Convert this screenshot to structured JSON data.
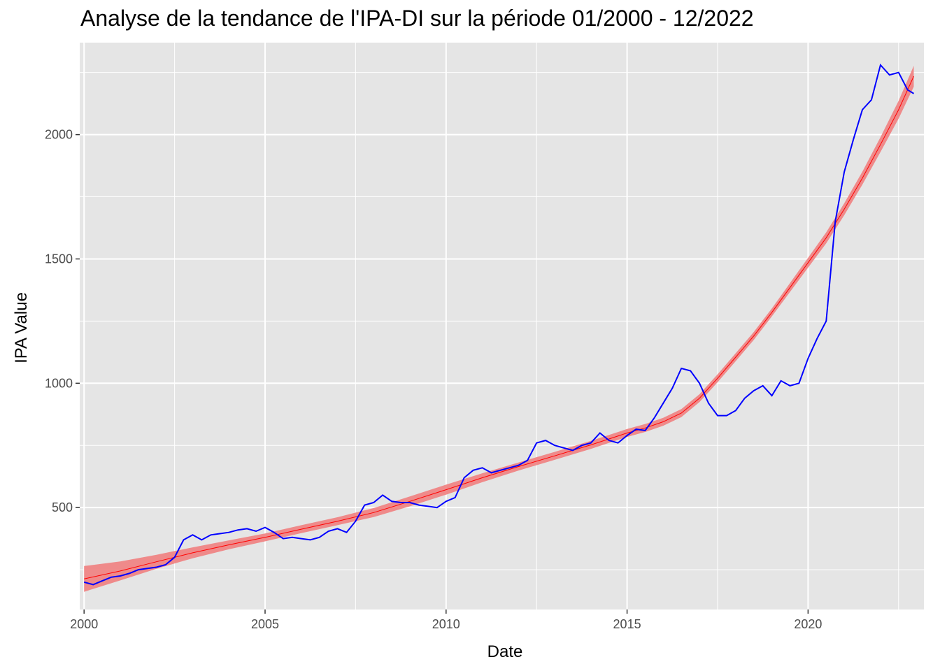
{
  "chart_data": {
    "type": "line",
    "title": "Analyse de la tendance de l'IPA-DI sur la période 01/2000 - 12/2022",
    "xlabel": "Date",
    "ylabel": "IPA Value",
    "xlim": [
      1999.88,
      2023.2
    ],
    "ylim": [
      90,
      2370
    ],
    "x_ticks": [
      2000,
      2005,
      2010,
      2015,
      2020
    ],
    "x_tick_labels": [
      "2000",
      "2005",
      "2010",
      "2015",
      "2020"
    ],
    "y_ticks": [
      500,
      1000,
      1500,
      2000
    ],
    "y_tick_labels": [
      "500",
      "1000",
      "1500",
      "2000"
    ],
    "grid": true,
    "legend": "none",
    "colors": {
      "panel": "#e5e5e5",
      "grid": "#ffffff",
      "series": "#0000ff",
      "trend": "#ff0000",
      "band": "#f08080"
    },
    "series": [
      {
        "x": [
          2000.0,
          2000.25,
          2000.5,
          2000.75,
          2001.0,
          2001.25,
          2001.5,
          2001.75,
          2002.0,
          2002.25,
          2002.5,
          2002.75,
          2003.0,
          2003.25,
          2003.5,
          2003.75,
          2004.0,
          2004.25,
          2004.5,
          2004.75,
          2005.0,
          2005.25,
          2005.5,
          2005.75,
          2006.0,
          2006.25,
          2006.5,
          2006.75,
          2007.0,
          2007.25,
          2007.5,
          2007.75,
          2008.0,
          2008.25,
          2008.5,
          2008.75,
          2009.0,
          2009.25,
          2009.5,
          2009.75,
          2010.0,
          2010.25,
          2010.5,
          2010.75,
          2011.0,
          2011.25,
          2011.5,
          2011.75,
          2012.0,
          2012.25,
          2012.5,
          2012.75,
          2013.0,
          2013.25,
          2013.5,
          2013.75,
          2014.0,
          2014.25,
          2014.5,
          2014.75,
          2015.0,
          2015.25,
          2015.5,
          2015.75,
          2016.0,
          2016.25,
          2016.5,
          2016.75,
          2017.0,
          2017.25,
          2017.5,
          2017.75,
          2018.0,
          2018.25,
          2018.5,
          2018.75,
          2019.0,
          2019.25,
          2019.5,
          2019.75,
          2020.0,
          2020.25,
          2020.5,
          2020.75,
          2021.0,
          2021.25,
          2021.5,
          2021.75,
          2022.0,
          2022.25,
          2022.5,
          2022.75,
          2022.92
        ],
        "values": [
          200,
          190,
          205,
          220,
          225,
          235,
          250,
          255,
          260,
          270,
          300,
          370,
          390,
          370,
          390,
          395,
          400,
          410,
          415,
          405,
          420,
          400,
          375,
          380,
          375,
          370,
          380,
          405,
          415,
          400,
          445,
          510,
          520,
          550,
          525,
          520,
          520,
          510,
          505,
          500,
          525,
          540,
          620,
          650,
          660,
          640,
          650,
          660,
          670,
          690,
          760,
          770,
          750,
          740,
          730,
          750,
          760,
          800,
          770,
          760,
          790,
          815,
          810,
          860,
          920,
          980,
          1060,
          1050,
          1000,
          920,
          870,
          870,
          890,
          940,
          970,
          990,
          950,
          1010,
          990,
          1000,
          1100,
          1180,
          1250,
          1650,
          1850,
          1980,
          2100,
          2140,
          2280,
          2240,
          2250,
          2180,
          2165
        ]
      },
      {
        "name": "",
        "x": [
          2000.0,
          2001.0,
          2002.0,
          2003.0,
          2004.0,
          2005.0,
          2006.0,
          2007.0,
          2008.0,
          2009.0,
          2010.0,
          2011.0,
          2012.0,
          2013.0,
          2014.0,
          2015.0,
          2015.5,
          2016.0,
          2016.5,
          2017.0,
          2017.5,
          2018.0,
          2018.5,
          2019.0,
          2019.5,
          2020.0,
          2020.5,
          2021.0,
          2021.5,
          2022.0,
          2022.5,
          2022.92
        ],
        "values": [
          213,
          245,
          282,
          318,
          350,
          380,
          413,
          445,
          480,
          525,
          572,
          620,
          665,
          708,
          752,
          800,
          820,
          845,
          880,
          940,
          1020,
          1105,
          1190,
          1285,
          1385,
          1485,
          1585,
          1700,
          1825,
          1960,
          2100,
          2235
        ],
        "band_half_width": [
          52,
          38,
          28,
          22,
          18,
          16,
          16,
          16,
          18,
          20,
          20,
          18,
          16,
          16,
          16,
          16,
          16,
          16,
          16,
          16,
          16,
          16,
          16,
          16,
          18,
          20,
          22,
          24,
          26,
          30,
          36,
          42
        ]
      }
    ]
  }
}
